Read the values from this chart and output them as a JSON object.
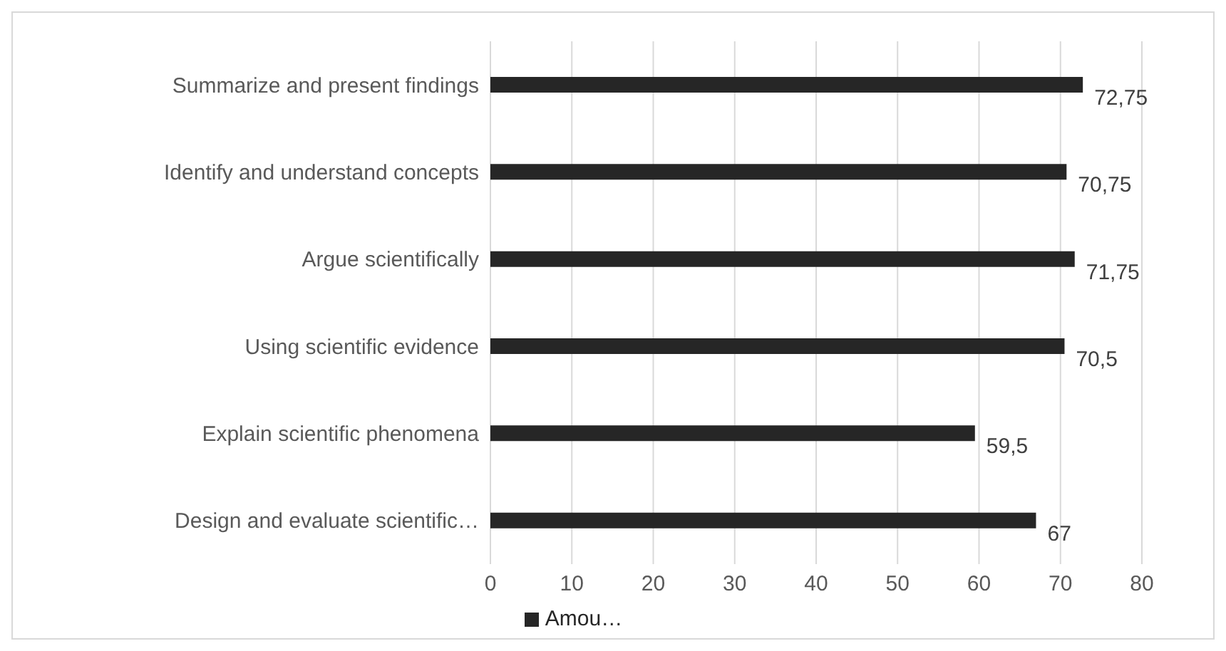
{
  "chart_data": {
    "type": "bar",
    "orientation": "horizontal",
    "categories": [
      "Summarize and present findings",
      "Identify and understand concepts",
      "Argue scientifically",
      "Using scientific evidence",
      "Explain scientific phenomena",
      "Design and evaluate scientific…"
    ],
    "series": [
      {
        "name": "Amou…",
        "color": "#262626",
        "values": [
          72.75,
          70.75,
          71.75,
          70.5,
          59.5,
          67
        ],
        "value_labels": [
          "72,75",
          "70,75",
          "71,75",
          "70,5",
          "59,5",
          "67"
        ]
      }
    ],
    "xlim": [
      0,
      80
    ],
    "xticks": [
      0,
      10,
      20,
      30,
      40,
      50,
      60,
      70,
      80
    ],
    "grid": "x",
    "legend": "bottom"
  }
}
